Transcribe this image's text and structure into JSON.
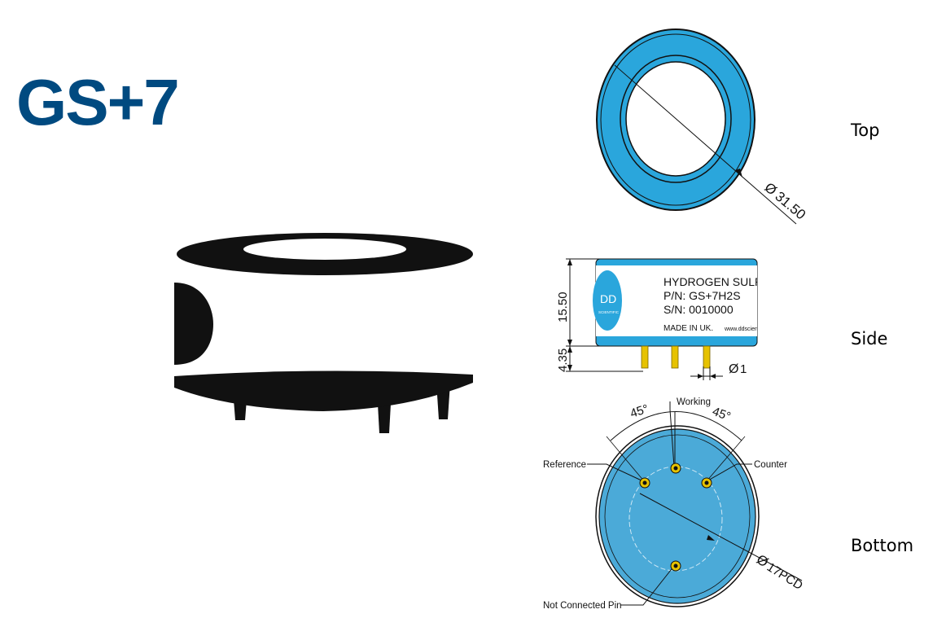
{
  "title": "GS+7",
  "colors": {
    "title": "#004a80",
    "ring": "#2aa6dc",
    "bottom_face": "#4baad8",
    "pin": "#e6c200",
    "ink": "#111111",
    "label_bg": "#ffffff"
  },
  "views": {
    "top": {
      "label": "Top",
      "dimension": "31.50"
    },
    "side": {
      "label": "Side",
      "height_body": "15.50",
      "height_pins": "4.35",
      "pin_diameter": "1",
      "logo": "DD",
      "logo_sub": "SCIENTIFIC",
      "label_lines": [
        "HYDROGEN SULPHIDE",
        "P/N: GS+7H2S",
        "S/N: 0010000"
      ],
      "footer_left": "MADE IN UK.",
      "footer_right": "www.ddscientific.com"
    },
    "bottom": {
      "label": "Bottom",
      "angle_left": "45°",
      "angle_right": "45°",
      "pcd": "17PCD",
      "pins": {
        "working": "Working",
        "reference": "Reference",
        "counter": "Counter",
        "nc": "Not Connected Pin"
      }
    }
  },
  "icons": [
    "sensor-illustration-icon",
    "diameter-symbol-icon"
  ]
}
